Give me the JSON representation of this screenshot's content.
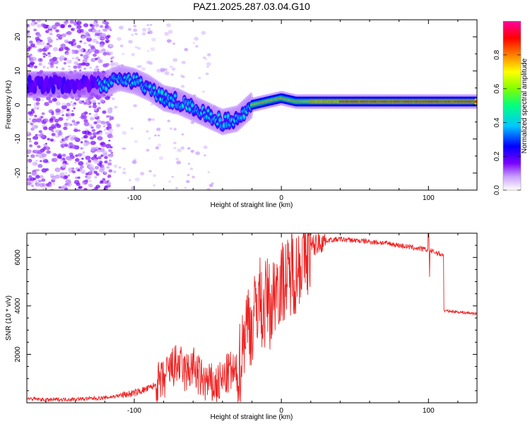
{
  "chart_data": [
    {
      "type": "heatmap",
      "title": "PAZ1.2025.287.03.04.G10",
      "xlabel": "Height of straight line (km)",
      "ylabel": "Frequency (Hz)",
      "xlim": [
        -173,
        133
      ],
      "ylim": [
        -25,
        25
      ],
      "xticks": [
        -100,
        0,
        100
      ],
      "yticks": [
        -20,
        -10,
        0,
        10,
        20
      ],
      "colorbar": {
        "label": "Normalized spectral amplitude",
        "range": [
          0,
          1
        ],
        "ticks": [
          "0.0",
          "0.2",
          "0.4",
          "0.6",
          "0.8"
        ],
        "stops": [
          "#ffffff",
          "#c8a0ff",
          "#7a00ff",
          "#0000ff",
          "#00c8ff",
          "#00ff80",
          "#80ff00",
          "#ffff00",
          "#ff8000",
          "#ff0000",
          "#ff00a0"
        ]
      },
      "ridge": {
        "x": [
          -120,
          -110,
          -100,
          -90,
          -80,
          -70,
          -60,
          -50,
          -40,
          -30,
          -25,
          -20,
          -10,
          0,
          10,
          20,
          40,
          60,
          80,
          100,
          120,
          133
        ],
        "y": [
          6,
          8,
          7,
          5,
          2,
          1,
          -1,
          -3,
          -5,
          -4,
          -2,
          0,
          1,
          2,
          1,
          1,
          1,
          1,
          1,
          1,
          1,
          1
        ]
      }
    },
    {
      "type": "line",
      "title": "",
      "xlabel": "Height of straight line (km)",
      "ylabel": "SNR (10 * v/v)",
      "xlim": [
        -173,
        133
      ],
      "ylim": [
        0,
        7000
      ],
      "xticks": [
        -100,
        0,
        100
      ],
      "yticks": [
        2000,
        4000,
        6000
      ],
      "color": "#ee2222",
      "series": [
        {
          "name": "SNR",
          "x": [
            -173,
            -160,
            -140,
            -120,
            -110,
            -100,
            -90,
            -80,
            -75,
            -70,
            -65,
            -60,
            -55,
            -50,
            -45,
            -40,
            -35,
            -30,
            -27,
            -25,
            -22,
            -20,
            -17,
            -15,
            -12,
            -10,
            -7,
            -5,
            -3,
            0,
            2,
            5,
            7,
            10,
            12,
            15,
            18,
            20,
            25,
            30,
            40,
            50,
            60,
            70,
            80,
            90,
            95,
            100,
            105,
            110,
            111,
            115,
            120,
            125,
            133
          ],
          "values": [
            180,
            120,
            150,
            200,
            300,
            400,
            600,
            900,
            1400,
            1600,
            1200,
            1500,
            1000,
            800,
            700,
            900,
            1300,
            1100,
            2000,
            3000,
            3500,
            3000,
            4000,
            4500,
            3500,
            4500,
            3800,
            4500,
            5000,
            4800,
            5200,
            5000,
            5600,
            5300,
            5800,
            6000,
            6200,
            6400,
            6600,
            6700,
            6750,
            6700,
            6650,
            6600,
            6500,
            6400,
            6350,
            6300,
            6200,
            6100,
            3800,
            3780,
            3750,
            3720,
            3680
          ]
        }
      ]
    }
  ]
}
